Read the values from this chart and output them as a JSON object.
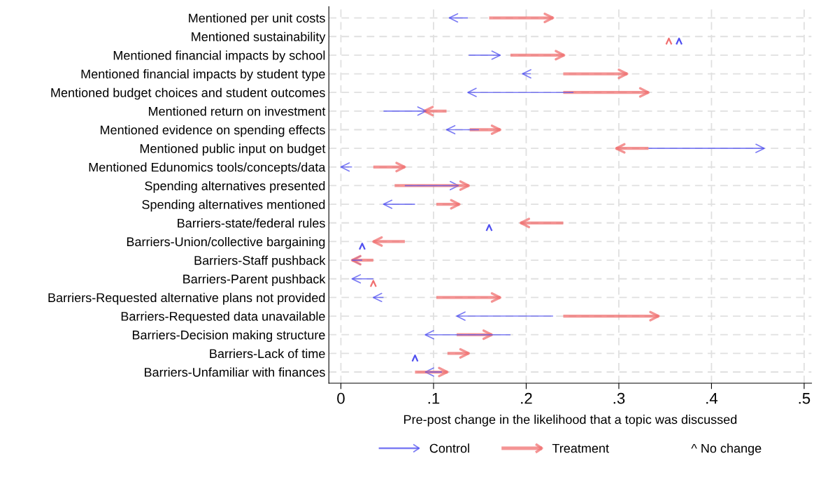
{
  "chart_data": {
    "type": "bar",
    "orientation": "horizontal",
    "xlabel": "Pre-post change in the likelihood that a topic was discussed",
    "categories": [
      "Mentioned per unit costs",
      "Mentioned sustainability",
      "Mentioned financial impacts by school",
      "Mentioned financial impacts by student type",
      "Mentioned budget choices and student outcomes",
      "Mentioned return on investment",
      "Mentioned evidence on spending effects",
      "Mentioned public input on budget",
      "Mentioned Edunomics tools/concepts/data",
      "Spending alternatives presented",
      "Spending alternatives mentioned",
      "Barriers-state/federal rules",
      "Barriers-Union/collective bargaining",
      "Barriers-Staff pushback",
      "Barriers-Parent pushback",
      "Barriers-Requested alternative plans not provided",
      "Barriers-Requested data unavailable",
      "Barriers-Decision making structure",
      "Barriers-Lack of time",
      "Barriers-Unfamiliar with finances"
    ],
    "series": [
      {
        "name": "Control",
        "color": "#5050f0",
        "base": [
          0.137,
          null,
          0.138,
          0.205,
          0.251,
          0.046,
          0.149,
          0.332,
          0.012,
          0.069,
          0.08,
          null,
          null,
          0.023,
          0.035,
          0.046,
          0.229,
          0.183,
          null,
          0.109
        ],
        "values": [
          -0.02,
          null,
          0.034,
          -0.009,
          -0.114,
          0.046,
          -0.035,
          0.125,
          -0.012,
          0.058,
          -0.034,
          null,
          null,
          -0.011,
          -0.023,
          -0.011,
          -0.104,
          -0.092,
          null,
          -0.018
        ]
      },
      {
        "name": "Treatment",
        "color": "#f07070",
        "base": [
          0.16,
          null,
          0.183,
          0.24,
          0.24,
          0.114,
          0.139,
          0.332,
          0.035,
          0.058,
          0.103,
          0.24,
          0.069,
          0.035,
          null,
          0.103,
          0.24,
          0.125,
          0.115,
          0.08
        ],
        "values": [
          0.069,
          null,
          0.058,
          0.069,
          0.092,
          -0.024,
          0.033,
          -0.035,
          0.034,
          0.08,
          0.025,
          -0.046,
          -0.034,
          -0.023,
          null,
          0.069,
          0.103,
          0.038,
          0.023,
          0.035
        ]
      },
      {
        "type": "scatter",
        "color": "#5050f0",
        "values": [
          null,
          0.365,
          null,
          null,
          null,
          null,
          null,
          null,
          null,
          null,
          null,
          0.16,
          0.023,
          null,
          null,
          null,
          null,
          null,
          0.08,
          null
        ]
      },
      {
        "type": "scatter",
        "color": "#f07070",
        "values": [
          null,
          0.354,
          null,
          null,
          null,
          null,
          null,
          null,
          null,
          null,
          null,
          null,
          null,
          null,
          0.035,
          null,
          null,
          null,
          null,
          null
        ]
      }
    ],
    "xlim": [
      -0.013,
      0.508
    ],
    "xticks": [
      0,
      {
        "value": 0.1,
        "label": ".1"
      },
      {
        "value": 0.2,
        "label": ".2"
      },
      {
        "value": 0.3,
        "label": ".3"
      },
      {
        "value": 0.4,
        "label": ".4"
      },
      {
        "value": 0.5,
        "label": ".5"
      }
    ],
    "grid": true,
    "legend": "bottom",
    "annotations": [
      "^ No change"
    ]
  }
}
